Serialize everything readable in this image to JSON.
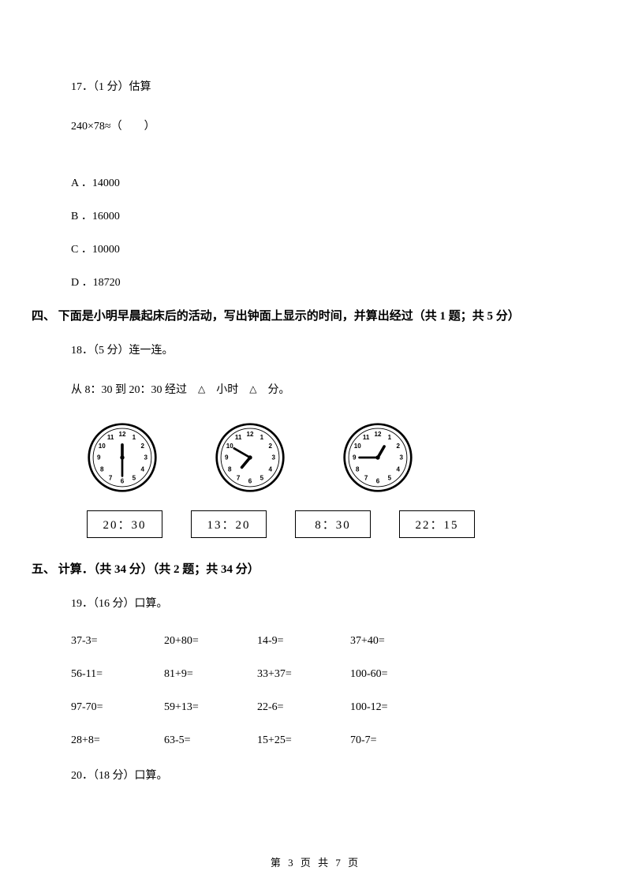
{
  "q17": {
    "heading": "17．（1 分）估算",
    "expr": "240×78≈（　　）",
    "options": {
      "A": "A ．14000",
      "B": "B ．16000",
      "C": "C ．10000",
      "D": "D ．18720"
    }
  },
  "section4": {
    "title": "四、 下面是小明早晨起床后的活动，写出钟面上显示的时间，并算出经过（共 1 题；共 5 分）"
  },
  "q18": {
    "heading": "18．（5 分）连一连。",
    "line_prefix": "从 8：30 到 20：30 经过　",
    "line_mid": "　小时　",
    "line_suffix": "　分。",
    "triangle": "△",
    "clocks": [
      {
        "hour_angle": -90,
        "minute_angle": 90
      },
      {
        "hour_angle": 130,
        "minute_angle": 210
      },
      {
        "hour_angle": -60,
        "minute_angle": 180
      }
    ],
    "boxes": [
      "20：30",
      "13：20",
      "8：30",
      "22：15"
    ]
  },
  "section5": {
    "title": "五、 计算．（共 34 分）（共 2 题；共 34 分）"
  },
  "q19": {
    "heading": "19．（16 分）口算。",
    "rows": [
      [
        "37-3=",
        "20+80=",
        "14-9=",
        "37+40="
      ],
      [
        "56-11=",
        "81+9=",
        "33+37=",
        "100-60="
      ],
      [
        "97-70=",
        "59+13=",
        "22-6=",
        "100-12="
      ],
      [
        "28+8=",
        "63-5=",
        "15+25=",
        "70-7="
      ]
    ]
  },
  "q20": {
    "heading": "20．（18 分）口算。"
  },
  "footer": {
    "text": "第 3 页 共 7 页"
  },
  "colors": {
    "text": "#000000",
    "background": "#ffffff",
    "clock_stroke": "#000000",
    "clock_fill": "#ffffff"
  }
}
